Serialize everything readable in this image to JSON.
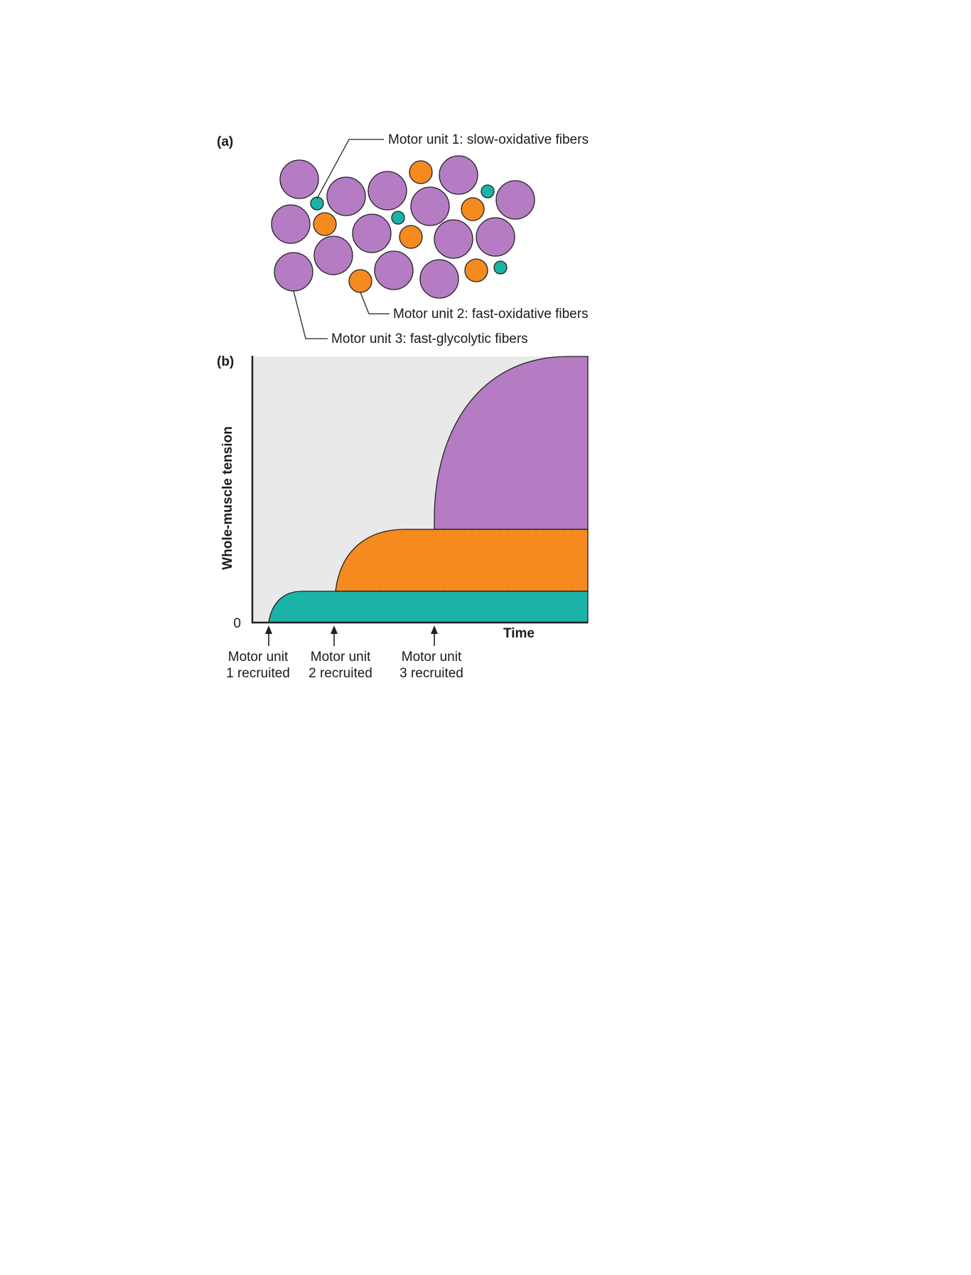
{
  "colors": {
    "slow_oxidative": "#1bb3a8",
    "fast_oxidative": "#f58a1f",
    "fast_glycolytic": "#b57cc4",
    "plot_background": "#e9e9e9"
  },
  "panel_a": {
    "label": "(a)",
    "callouts": {
      "motor_unit_1": "Motor unit 1: slow-oxidative fibers",
      "motor_unit_2": "Motor unit 2: fast-oxidative fibers",
      "motor_unit_3": "Motor unit 3: fast-glycolytic fibers"
    }
  },
  "panel_b": {
    "label": "(b)",
    "ylabel": "Whole-muscle tension",
    "xlabel": "Time",
    "y_origin_label": "0",
    "recruitment_labels": [
      {
        "line1": "Motor unit",
        "line2": "1 recruited"
      },
      {
        "line1": "Motor unit",
        "line2": "2 recruited"
      },
      {
        "line1": "Motor unit",
        "line2": "3 recruited"
      }
    ]
  }
}
